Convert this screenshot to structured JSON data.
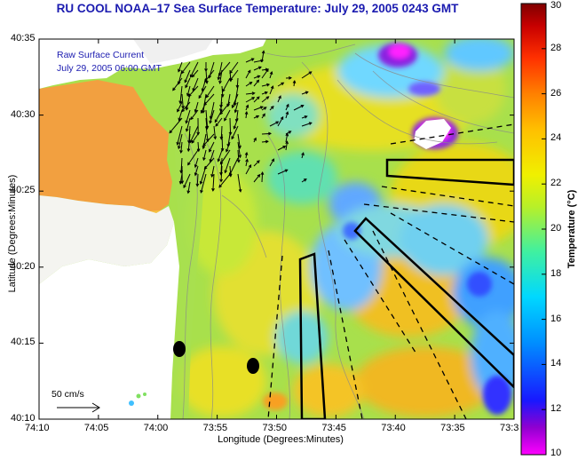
{
  "title": "RU COOL  NOAA–17  Sea Surface Temperature:  July 29, 2005 0243 GMT",
  "legend": {
    "line1": "Raw Surface Current",
    "line2": "July 29, 2005 06:00 GMT"
  },
  "axes": {
    "xlabel": "Longitude (Degrees:Minutes)",
    "ylabel": "Latitude (Degrees:Minutes)",
    "xticks": [
      "74:10",
      "74:05",
      "74:00",
      "73:55",
      "73:50",
      "73:45",
      "73:40",
      "73:35",
      "73:3"
    ],
    "yticks": [
      "40:35",
      "40:30",
      "40:25",
      "40:20",
      "40:15",
      "40:10"
    ]
  },
  "scale": {
    "label": "50 cm/s"
  },
  "colorbar": {
    "label": "Temperature (°C)",
    "ticks": [
      "30",
      "28",
      "26",
      "24",
      "22",
      "20",
      "18",
      "16",
      "14",
      "12",
      "10"
    ],
    "range": [
      10,
      30
    ],
    "colors": [
      "#ff00ff",
      "#8000c0",
      "#1010ff",
      "#0080ff",
      "#00c0ff",
      "#00e0c0",
      "#60f060",
      "#c0f020",
      "#f0f000",
      "#ffc000",
      "#ff8000",
      "#ff3000",
      "#c00000",
      "#800000"
    ]
  },
  "colors": {
    "title": "#1b1bb0",
    "land": "#ffffff",
    "ocean_base": "#a6e24c",
    "warm": "#f4a53a"
  }
}
